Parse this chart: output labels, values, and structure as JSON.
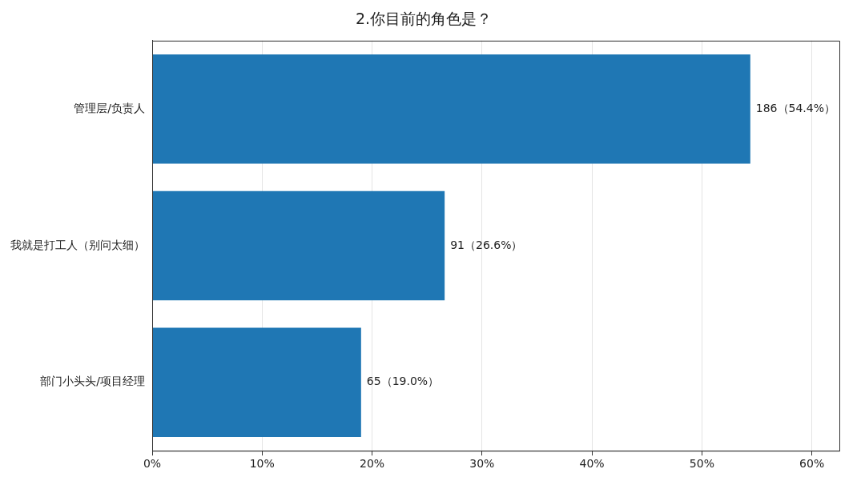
{
  "chart_data": {
    "type": "bar",
    "title": "2.你目前的角色是？",
    "orientation": "horizontal",
    "categories": [
      "管理层/负责人",
      "我就是打工人（别问太细）",
      "部门小头头/项目经理"
    ],
    "values": [
      54.4,
      26.6,
      19.0
    ],
    "value_labels": [
      "186（54.4%）",
      "91（26.6%）",
      "65（19.0%）"
    ],
    "color": "#1f77b4",
    "xlim": [
      0,
      62.5
    ],
    "xticks": [
      {
        "value": 0,
        "label": "0%"
      },
      {
        "value": 10,
        "label": "10%"
      },
      {
        "value": 20,
        "label": "20%"
      },
      {
        "value": 30,
        "label": "30%"
      },
      {
        "value": 40,
        "label": "40%"
      },
      {
        "value": 50,
        "label": "50%"
      },
      {
        "value": 60,
        "label": "60%"
      }
    ],
    "grid": "x"
  }
}
